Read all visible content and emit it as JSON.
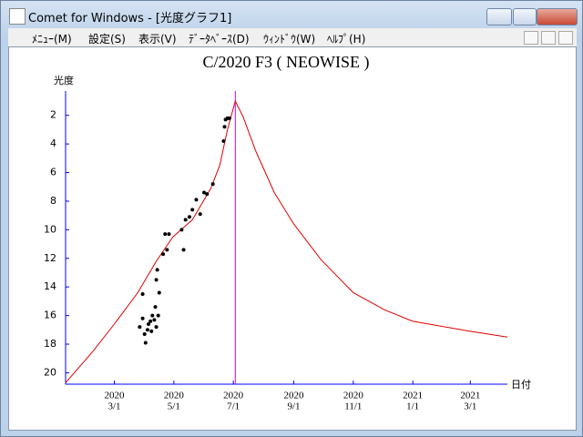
{
  "window": {
    "title": "Comet for Windows - [光度グラフ1]"
  },
  "menu": [
    "ﾒﾆｭｰ(M)",
    "設定(S)",
    "表示(V)",
    "ﾃﾞｰﾀﾍﾞｰｽ(D)",
    "ｳｨﾝﾄﾞｳ(W)",
    "ﾍﾙﾌﾟ(H)"
  ],
  "chart_data": {
    "type": "scatter",
    "title": "C/2020 F3 ( NEOWISE )",
    "y_label": "光度",
    "x_label": "日付",
    "xlim": [
      "2020-01-11",
      "2021-04-08"
    ],
    "ylim": [
      20.8,
      0.3
    ],
    "yticks": [
      2,
      4,
      6,
      8,
      10,
      12,
      14,
      16,
      18,
      20
    ],
    "xticks": [
      {
        "value": "2020-03-01",
        "label": [
          "2020",
          "3/1"
        ]
      },
      {
        "value": "2020-05-01",
        "label": [
          "2020",
          "5/1"
        ]
      },
      {
        "value": "2020-07-01",
        "label": [
          "2020",
          "7/1"
        ]
      },
      {
        "value": "2020-09-01",
        "label": [
          "2020",
          "9/1"
        ]
      },
      {
        "value": "2020-11-01",
        "label": [
          "2020",
          "11/1"
        ]
      },
      {
        "value": "2021-01-01",
        "label": [
          "2021",
          "1/1"
        ]
      },
      {
        "value": "2021-03-01",
        "label": [
          "2021",
          "3/1"
        ]
      }
    ],
    "axis_color": "#0000ff",
    "vline": "2020-07-03",
    "vline_color": "#c000ff",
    "series": [
      {
        "kind": "line",
        "color": "#e00000",
        "x": [
          "2020-01-11",
          "2020-02-08",
          "2020-03-01",
          "2020-03-25",
          "2020-04-13",
          "2020-04-30",
          "2020-05-20",
          "2020-06-08",
          "2020-06-17",
          "2020-06-25",
          "2020-07-03",
          "2020-07-11",
          "2020-07-24",
          "2020-08-12",
          "2020-09-01",
          "2020-09-29",
          "2020-11-01",
          "2020-12-03",
          "2021-01-01",
          "2021-03-01",
          "2021-04-08"
        ],
        "values": [
          20.7,
          18.5,
          16.6,
          14.4,
          12.2,
          10.5,
          9.3,
          7.1,
          5.5,
          3.0,
          1.0,
          2.1,
          4.5,
          7.4,
          9.6,
          12.1,
          14.4,
          15.6,
          16.4,
          17.1,
          17.5
        ]
      },
      {
        "kind": "points",
        "color": "#000000",
        "x": [
          "2020-03-27",
          "2020-03-30",
          "2020-03-30",
          "2020-04-01",
          "2020-04-02",
          "2020-04-04",
          "2020-04-05",
          "2020-04-07",
          "2020-04-08",
          "2020-04-09",
          "2020-04-11",
          "2020-04-12",
          "2020-04-13",
          "2020-04-13",
          "2020-04-14",
          "2020-04-15",
          "2020-04-16",
          "2020-04-20",
          "2020-04-22",
          "2020-04-24",
          "2020-04-26",
          "2020-05-09",
          "2020-05-11",
          "2020-05-13",
          "2020-05-17",
          "2020-05-20",
          "2020-05-24",
          "2020-05-28",
          "2020-06-01",
          "2020-06-04",
          "2020-06-10",
          "2020-06-21",
          "2020-06-22",
          "2020-06-23",
          "2020-06-25",
          "2020-06-27"
        ],
        "values": [
          16.8,
          16.2,
          14.5,
          17.3,
          17.9,
          17.0,
          16.6,
          16.4,
          17.1,
          16.0,
          16.3,
          15.4,
          16.8,
          13.5,
          12.8,
          16.0,
          14.4,
          11.7,
          10.3,
          11.4,
          10.3,
          10.0,
          11.4,
          9.3,
          9.1,
          8.6,
          7.9,
          8.9,
          7.4,
          7.5,
          6.8,
          3.8,
          2.8,
          2.3,
          2.2,
          2.2
        ]
      }
    ]
  }
}
